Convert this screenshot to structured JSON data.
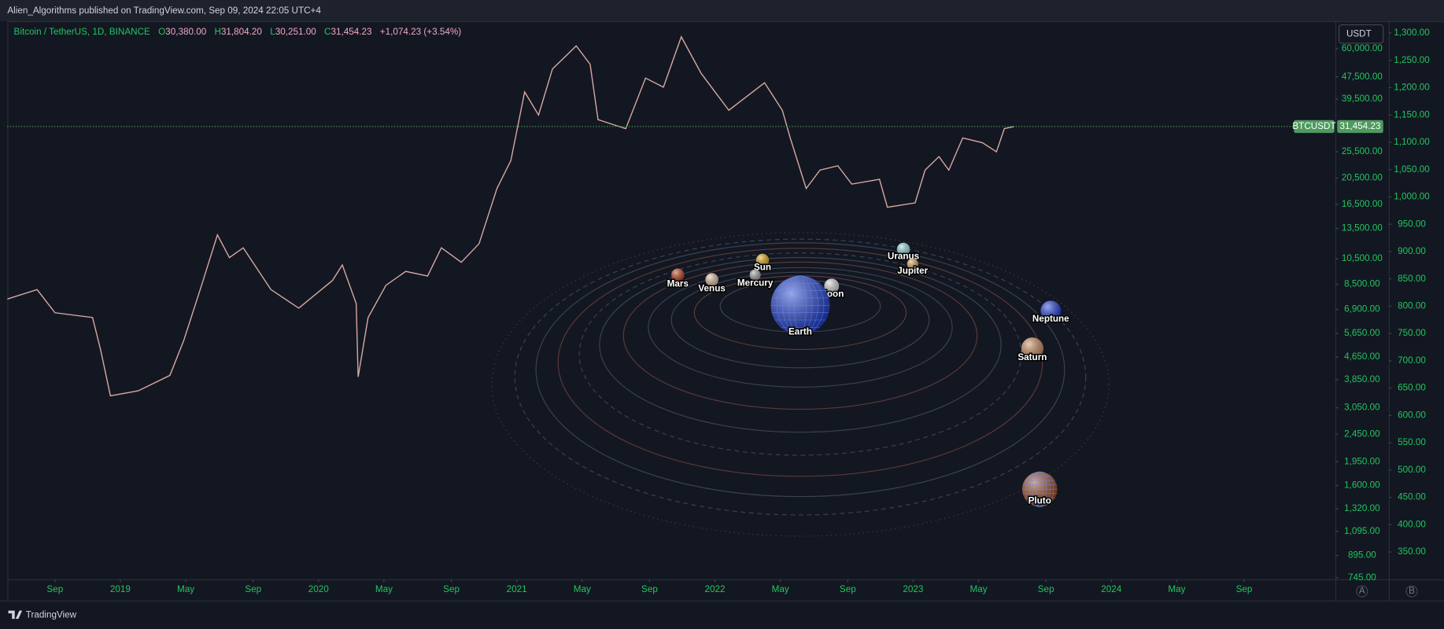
{
  "header": {
    "publisher": "Alien_Algorithms published on TradingView.com, Sep 09, 2024 22:05 UTC+4"
  },
  "chart_data": {
    "type": "line",
    "title": "Bitcoin / TetherUS, 1D, BINANCE",
    "ohlc": {
      "o_key": "O",
      "o": "30,380.00",
      "h_key": "H",
      "h": "31,804.20",
      "l_key": "L",
      "l": "30,251.00",
      "c_key": "C",
      "c": "31,454.23",
      "change": "+1,074.23 (+3.54%)"
    },
    "currency_button": "USDT",
    "price_tag": {
      "name": "BTCUSDT",
      "value": 31454.23,
      "label": "31,454.23"
    },
    "color": "#d8a8a0",
    "log_scale": true,
    "x": [
      2018.43,
      2018.58,
      2018.67,
      2018.86,
      2018.9,
      2018.95,
      2019.09,
      2019.25,
      2019.32,
      2019.41,
      2019.49,
      2019.55,
      2019.62,
      2019.76,
      2019.9,
      2020.07,
      2020.12,
      2020.19,
      2020.2,
      2020.25,
      2020.34,
      2020.44,
      2020.55,
      2020.62,
      2020.72,
      2020.81,
      2020.9,
      2020.97,
      2021.04,
      2021.11,
      2021.18,
      2021.3,
      2021.37,
      2021.41,
      2021.55,
      2021.65,
      2021.74,
      2021.83,
      2021.93,
      2022.07,
      2022.25,
      2022.34,
      2022.38,
      2022.46,
      2022.53,
      2022.62,
      2022.69,
      2022.83,
      2022.87,
      2023.01,
      2023.06,
      2023.13,
      2023.18,
      2023.25,
      2023.35,
      2023.42,
      2023.46,
      2023.51
    ],
    "values": [
      7520,
      8130,
      6710,
      6450,
      4940,
      3370,
      3510,
      3990,
      5330,
      8430,
      12800,
      10600,
      11500,
      8130,
      6970,
      8770,
      9980,
      7240,
      3940,
      6450,
      8430,
      9460,
      9100,
      11500,
      10200,
      11900,
      18800,
      23700,
      41900,
      34600,
      50700,
      61400,
      52700,
      33300,
      30900,
      47000,
      43600,
      66200,
      48900,
      36000,
      45200,
      36000,
      28600,
      18800,
      21900,
      22700,
      19500,
      20300,
      16100,
      16700,
      21900,
      24500,
      21900,
      28600,
      27500,
      25500,
      30900,
      31454.23
    ],
    "xlim": [
      2018.43,
      2025.13
    ],
    "xticks": [
      {
        "value": 2018.67,
        "label": "Sep"
      },
      2019,
      {
        "value": 2019.33,
        "label": "May"
      },
      {
        "value": 2019.67,
        "label": "Sep"
      },
      2020,
      {
        "value": 2020.33,
        "label": "May"
      },
      {
        "value": 2020.67,
        "label": "Sep"
      },
      2021,
      {
        "value": 2021.33,
        "label": "May"
      },
      {
        "value": 2021.67,
        "label": "Sep"
      },
      2022,
      {
        "value": 2022.33,
        "label": "May"
      },
      {
        "value": 2022.67,
        "label": "Sep"
      },
      2023,
      {
        "value": 2023.33,
        "label": "May"
      },
      {
        "value": 2023.67,
        "label": "Sep"
      },
      2024,
      {
        "value": 2024.33,
        "label": "May"
      },
      {
        "value": 2024.67,
        "label": "Sep"
      }
    ],
    "ylim": [
      735,
      74800
    ],
    "yticks": [
      {
        "value": 60000,
        "label": "60,000.00"
      },
      {
        "value": 47500,
        "label": "47,500.00"
      },
      {
        "value": 39500,
        "label": "39,500.00"
      },
      {
        "value": 25500,
        "label": "25,500.00"
      },
      {
        "value": 20500,
        "label": "20,500.00"
      },
      {
        "value": 16500,
        "label": "16,500.00"
      },
      {
        "value": 13500,
        "label": "13,500.00"
      },
      {
        "value": 10500,
        "label": "10,500.00"
      },
      {
        "value": 8500,
        "label": "8,500.00"
      },
      {
        "value": 6900,
        "label": "6,900.00"
      },
      {
        "value": 5650,
        "label": "5,650.00"
      },
      {
        "value": 4650,
        "label": "4,650.00"
      },
      {
        "value": 3850,
        "label": "3,850.00"
      },
      {
        "value": 3050,
        "label": "3,050.00"
      },
      {
        "value": 2450,
        "label": "2,450.00"
      },
      {
        "value": 1950,
        "label": "1,950.00"
      },
      {
        "value": 1600,
        "label": "1,600.00"
      },
      {
        "value": 1320,
        "label": "1,320.00"
      },
      {
        "value": 1095,
        "label": "1,095.00"
      },
      {
        "value": 895,
        "label": "895.00"
      },
      {
        "value": 745,
        "label": "745.00"
      }
    ],
    "y2lim": [
      300,
      1320
    ],
    "y2ticks": [
      {
        "value": 1300,
        "label": "1,300.00"
      },
      {
        "value": 1250,
        "label": "1,250.00"
      },
      {
        "value": 1200,
        "label": "1,200.00"
      },
      {
        "value": 1150,
        "label": "1,150.00"
      },
      {
        "value": 1100,
        "label": "1,100.00"
      },
      {
        "value": 1050,
        "label": "1,050.00"
      },
      {
        "value": 1000,
        "label": "1,000.00"
      },
      {
        "value": 950,
        "label": "950.00"
      },
      {
        "value": 900,
        "label": "900.00"
      },
      {
        "value": 850,
        "label": "850.00"
      },
      {
        "value": 800,
        "label": "800.00"
      },
      {
        "value": 750,
        "label": "750.00"
      },
      {
        "value": 700,
        "label": "700.00"
      },
      {
        "value": 650,
        "label": "650.00"
      },
      {
        "value": 600,
        "label": "600.00"
      },
      {
        "value": 550,
        "label": "550.00"
      },
      {
        "value": 500,
        "label": "500.00"
      },
      {
        "value": 450,
        "label": "450.00"
      },
      {
        "value": 400,
        "label": "400.00"
      },
      {
        "value": 350,
        "label": "350.00"
      }
    ],
    "scale_buttons": [
      "A",
      "B"
    ]
  },
  "overlay": {
    "planets": [
      "Mars",
      "Venus",
      "Sun",
      "Mercury",
      "Moon",
      "Uranus",
      "Jupiter",
      "Neptune",
      "Saturn",
      "Pluto",
      "Earth"
    ]
  },
  "footer": {
    "brand": "TradingView"
  }
}
